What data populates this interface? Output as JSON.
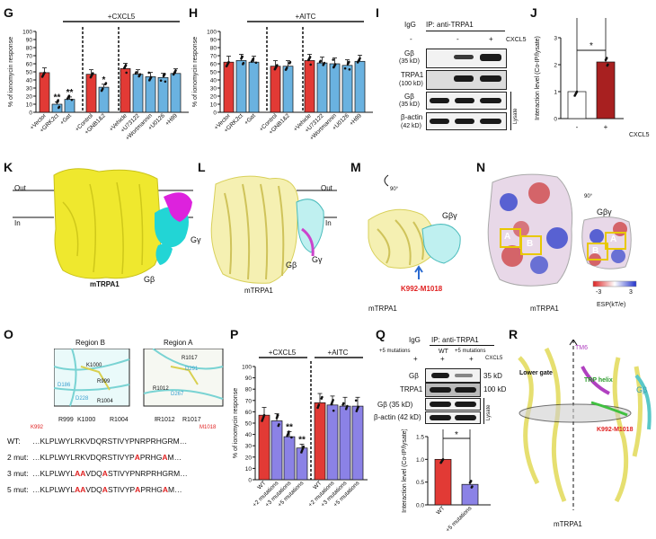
{
  "panels": {
    "G": "G",
    "H": "H",
    "I": "I",
    "J": "J",
    "K": "K",
    "L": "L",
    "M": "M",
    "N": "N",
    "O": "O",
    "P": "P",
    "Q": "Q",
    "R": "R"
  },
  "chart_data": [
    {
      "id": "G",
      "type": "bar",
      "title": "+CXCL5",
      "ylabel": "% of ionomycin response",
      "ylim": [
        0,
        100
      ],
      "yticks": [
        0,
        10,
        20,
        30,
        40,
        50,
        60,
        70,
        80,
        90,
        100
      ],
      "categories": [
        "+Vector",
        "+GRK2ct",
        "+Gαt",
        "+Control",
        "+GNB1&2",
        "+Vehicle",
        "+U73122",
        "+Wortmannin",
        "+U0126",
        "+H89"
      ],
      "values": [
        49,
        10,
        16,
        47,
        31,
        54,
        47,
        44,
        43,
        48
      ],
      "colors": [
        "red",
        "blue",
        "blue",
        "red",
        "blue",
        "red",
        "blue",
        "blue",
        "blue",
        "blue"
      ],
      "annotations": [
        "",
        "**",
        "**",
        "",
        "*",
        "",
        "",
        "",
        "",
        ""
      ]
    },
    {
      "id": "H",
      "type": "bar",
      "title": "+AITC",
      "ylabel": "% of ionomycin response",
      "ylim": [
        0,
        100
      ],
      "yticks": [
        0,
        10,
        20,
        30,
        40,
        50,
        60,
        70,
        80,
        90,
        100
      ],
      "categories": [
        "+Vector",
        "+GRK2ct",
        "+Gαt",
        "+Control",
        "+GNB1&2",
        "+Vehicle",
        "+U73122",
        "+Wortmannin",
        "+U0126",
        "+H89"
      ],
      "values": [
        62,
        64,
        62,
        57,
        57,
        64,
        61,
        60,
        58,
        63
      ],
      "colors": [
        "red",
        "blue",
        "blue",
        "red",
        "blue",
        "red",
        "blue",
        "blue",
        "blue",
        "blue"
      ]
    },
    {
      "id": "J",
      "type": "bar",
      "ylabel": "Interaction level (Co-IP/lysate)",
      "ylim": [
        0,
        3
      ],
      "yticks": [
        0,
        1,
        2,
        3
      ],
      "categories": [
        "-",
        "+"
      ],
      "values": [
        1.0,
        2.1
      ],
      "colors": [
        "white",
        "darkred"
      ],
      "xlabel": "CXCL5",
      "annotations": [
        "*"
      ]
    },
    {
      "id": "P",
      "type": "bar",
      "ylabel": "% of ionomycin response",
      "ylim": [
        0,
        100
      ],
      "yticks": [
        0,
        10,
        20,
        30,
        40,
        50,
        60,
        70,
        80,
        90,
        100
      ],
      "groups": [
        "+CXCL5",
        "+AITC"
      ],
      "categories": [
        "WT",
        "+2 mutations",
        "+3 mutations",
        "+5 mutations",
        "WT",
        "+2 mutations",
        "+3 mutations",
        "+5 mutations"
      ],
      "values": [
        57,
        52,
        38,
        28,
        68,
        66,
        65,
        65
      ],
      "colors": [
        "red",
        "purple",
        "purple",
        "purple",
        "red",
        "purple",
        "purple",
        "purple"
      ],
      "annotations": [
        "",
        "",
        "**",
        "**",
        "",
        "",
        "",
        ""
      ]
    },
    {
      "id": "Q",
      "type": "bar",
      "ylabel": "Interaction level (Co-IP/lysate)",
      "ylim": [
        0,
        1.5
      ],
      "yticks": [
        0,
        0.5,
        1.0,
        1.5
      ],
      "categories": [
        "WT",
        "+5 mutations"
      ],
      "values": [
        1.0,
        0.45
      ],
      "colors": [
        "red",
        "purple"
      ],
      "annotations": [
        "*"
      ]
    }
  ],
  "blotI": {
    "header_igg": "IgG",
    "header_ip": "IP: anti-TRPA1",
    "lanes": [
      "-",
      "-",
      "+"
    ],
    "treatment": "CXCL5",
    "rows": [
      "Gβ\n(35 kD)",
      "TRPA1\n(100 kD)",
      "Gβ\n(35 kD)",
      "β-actin\n(42 kD)"
    ],
    "row_labels": [
      "Gβ",
      "(35 kD)",
      "TRPA1",
      "(100 kD)",
      "Gβ",
      "(35 kD)",
      "β-actin",
      "(42 kD)"
    ],
    "lysate": "Lysate"
  },
  "blotQ": {
    "igg": "IgG",
    "ip": "IP: anti-TRPA1",
    "mut_label": "+5 mutations",
    "wt": "WT",
    "mut2": "+5 mutations",
    "plus": "+",
    "treatment": "CXCL5",
    "rows": [
      "Gβ",
      "TRPA1",
      "Gβ (35 kD)",
      "β-actin (42 kD)"
    ],
    "sizes": [
      "35 kD",
      "100 kD"
    ],
    "lysate": "Lysate"
  },
  "structure": {
    "out": "Out",
    "in": "In",
    "gy": "Gγ",
    "gb": "Gβ",
    "gby": "Gβγ",
    "mtrpa1": "mTRPA1",
    "k992": "K992-M1018",
    "rot90": "90°",
    "esp": "ESP(kT/e)",
    "esp_min": "-3",
    "esp_max": "3",
    "a": "A",
    "b": "B"
  },
  "panelO": {
    "regionB": "Region B",
    "regionA": "Region A",
    "labelsB": [
      "K1000",
      "R999",
      "D186",
      "D228",
      "R1004"
    ],
    "labelsA": [
      "R1017",
      "D291",
      "R1012",
      "D267"
    ],
    "pos_left": [
      "R999",
      "K1000",
      "R1004"
    ],
    "pos_right": [
      "R1012",
      "R1017"
    ],
    "k992": "K992",
    "m1018": "M1018",
    "seq_names": [
      "WT:",
      "2 mut:",
      "3 mut:",
      "5 mut:"
    ],
    "wt": "…KLPLWYLRKVDQRSTIVYPNRPRHGRM…",
    "m2a": "…KLPLWYLRKVDQRSTIVYP",
    "m2b": "A",
    "m2c": "PRHG",
    "m2d": "A",
    "m2e": "M…",
    "m3a": "…KLPLWYL",
    "m3b": "AA",
    "m3c": "VDQ",
    "m3d": "A",
    "m3e": "STIVYPNRPRHGRM…",
    "m5a": "…KLPLWYL",
    "m5b": "AA",
    "m5c": "VDQ",
    "m5d": "A",
    "m5e": "STIVYP",
    "m5f": "A",
    "m5g": "PRHG",
    "m5h": "A",
    "m5i": "M…"
  },
  "panelR": {
    "tm6": "TM6",
    "lower_gate": "Lower gate",
    "trp_helix": "TRP helix",
    "k992": "K992-M1018",
    "gb": "Gβ",
    "mtrpa1": "mTRPA1"
  }
}
